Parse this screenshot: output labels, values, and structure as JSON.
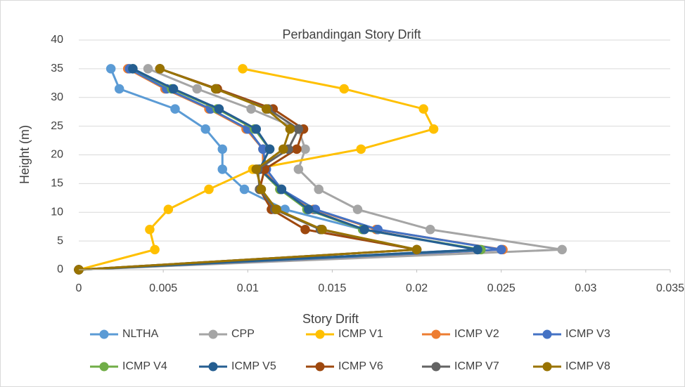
{
  "chart_data": {
    "type": "line",
    "title": "Perbandingan Story Drift",
    "x_label": "Story Drift",
    "y_label": "Height (m)",
    "xlim": [
      0,
      0.035
    ],
    "xticks": [
      0,
      0.005,
      0.01,
      0.015,
      0.02,
      0.025,
      0.03,
      0.035
    ],
    "ylim": [
      0,
      40
    ],
    "yticks": [
      0,
      5,
      10,
      15,
      20,
      25,
      30,
      35,
      40
    ],
    "grid": true,
    "legend": "bottom",
    "series": [
      {
        "name": "NLTHA",
        "color": "#5b9bd5",
        "x": [
          0,
          0.0236,
          0.0168,
          0.0122,
          0.0098,
          0.0085,
          0.0085,
          0.0075,
          0.0057,
          0.0024,
          0.0019
        ],
        "values": [
          0,
          3.5,
          7,
          10.5,
          14,
          17.5,
          21,
          24.5,
          28,
          31.5,
          35
        ]
      },
      {
        "name": "CPP",
        "color": "#a5a5a5",
        "x": [
          0,
          0.0286,
          0.0208,
          0.0165,
          0.0142,
          0.013,
          0.0134,
          0.013,
          0.0102,
          0.007,
          0.0041
        ],
        "values": [
          0,
          3.5,
          7,
          10.5,
          14,
          17.5,
          21,
          24.5,
          28,
          31.5,
          35
        ]
      },
      {
        "name": "ICMP V1",
        "color": "#ffc000",
        "x": [
          0,
          0.0045,
          0.0042,
          0.0053,
          0.0077,
          0.0103,
          0.0167,
          0.021,
          0.0204,
          0.0157,
          0.0097
        ],
        "values": [
          0,
          3.5,
          7,
          10.5,
          14,
          17.5,
          21,
          24.5,
          28,
          31.5,
          35
        ]
      },
      {
        "name": "ICMP V2",
        "color": "#ed7d31",
        "x": [
          0,
          0.0251,
          0.0176,
          0.0139,
          0.0119,
          0.0109,
          0.0109,
          0.0099,
          0.0077,
          0.0051,
          0.0029
        ],
        "values": [
          0,
          3.5,
          7,
          10.5,
          14,
          17.5,
          21,
          24.5,
          28,
          31.5,
          35
        ]
      },
      {
        "name": "ICMP V3",
        "color": "#4472c4",
        "x": [
          0,
          0.025,
          0.0177,
          0.014,
          0.012,
          0.0111,
          0.0109,
          0.01,
          0.0078,
          0.0052,
          0.003
        ],
        "values": [
          0,
          3.5,
          7,
          10.5,
          14,
          17.5,
          21,
          24.5,
          28,
          31.5,
          35
        ]
      },
      {
        "name": "ICMP V4",
        "color": "#70ad47",
        "x": [
          0,
          0.0238,
          0.0168,
          0.0135,
          0.0119,
          0.0107,
          0.0113,
          0.0104,
          0.0082,
          0.0055,
          0.0032
        ],
        "values": [
          0,
          3.5,
          7,
          10.5,
          14,
          17.5,
          21,
          24.5,
          28,
          31.5,
          35
        ]
      },
      {
        "name": "ICMP V5",
        "color": "#255e91",
        "x": [
          0,
          0.0236,
          0.0169,
          0.0136,
          0.012,
          0.0107,
          0.0113,
          0.0105,
          0.0083,
          0.0056,
          0.0032
        ],
        "values": [
          0,
          3.5,
          7,
          10.5,
          14,
          17.5,
          21,
          24.5,
          28,
          31.5,
          35
        ]
      },
      {
        "name": "ICMP V6",
        "color": "#9e480e",
        "x": [
          0,
          0.02,
          0.0134,
          0.0114,
          0.0107,
          0.011,
          0.0129,
          0.0133,
          0.0115,
          0.0082,
          0.0048
        ],
        "values": [
          0,
          3.5,
          7,
          10.5,
          14,
          17.5,
          21,
          24.5,
          28,
          31.5,
          35
        ]
      },
      {
        "name": "ICMP V7",
        "color": "#636363",
        "x": [
          0,
          0.02,
          0.0143,
          0.0116,
          0.0107,
          0.0106,
          0.0124,
          0.013,
          0.0112,
          0.0081,
          0.0048
        ],
        "values": [
          0,
          3.5,
          7,
          10.5,
          14,
          17.5,
          21,
          24.5,
          28,
          31.5,
          35
        ]
      },
      {
        "name": "ICMP V8",
        "color": "#997300",
        "x": [
          0,
          0.02,
          0.0144,
          0.0117,
          0.0108,
          0.0105,
          0.0121,
          0.0125,
          0.0111,
          0.0081,
          0.0048
        ],
        "values": [
          0,
          3.5,
          7,
          10.5,
          14,
          17.5,
          21,
          24.5,
          28,
          31.5,
          35
        ]
      }
    ]
  }
}
